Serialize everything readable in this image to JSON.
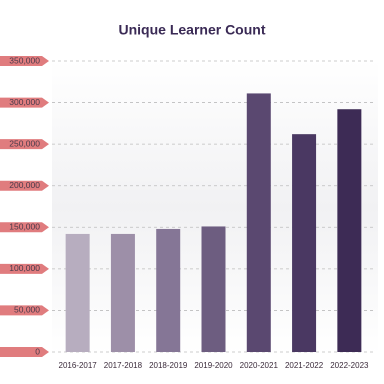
{
  "chart_data": {
    "type": "bar",
    "title": "Unique Learner Count",
    "categories": [
      "2016-2017",
      "2017-2018",
      "2018-2019",
      "2019-2020",
      "2020-2021",
      "2021-2022",
      "2022-2023"
    ],
    "values": [
      142000,
      142000,
      148000,
      151000,
      311000,
      262000,
      292000
    ],
    "colors": [
      "#b7adbf",
      "#9d8fa8",
      "#857696",
      "#6d5d80",
      "#5a4870",
      "#4a3862",
      "#3d2b55"
    ],
    "ylim": [
      0,
      350000
    ],
    "yticks": [
      0,
      {
        "value": 50000,
        "label": "50,000"
      },
      {
        "value": 100000,
        "label": "100,000"
      },
      {
        "value": 150000,
        "label": "150,000"
      },
      {
        "value": 200000,
        "label": "200,000"
      },
      {
        "value": 250000,
        "label": "250,000"
      },
      {
        "value": 300000,
        "label": "300,000"
      },
      {
        "value": 350000,
        "label": "350,000"
      }
    ],
    "grid": true
  }
}
